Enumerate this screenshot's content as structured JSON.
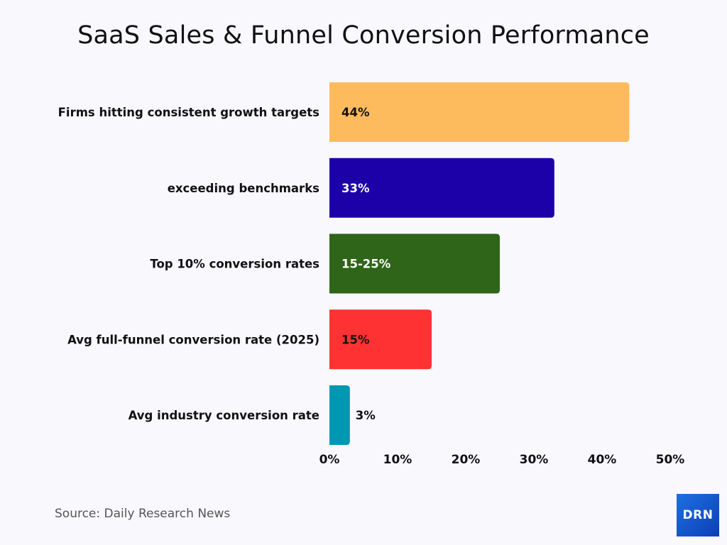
{
  "chart_data": {
    "type": "bar",
    "orientation": "horizontal",
    "title": "SaaS Sales & Funnel Conversion Performance",
    "categories": [
      "Firms hitting consistent growth targets",
      "exceeding benchmarks",
      "Top 10% conversion rates",
      "Avg full-funnel conversion rate (2025)",
      "Avg industry conversion rate"
    ],
    "values": [
      44,
      33,
      25,
      15,
      3
    ],
    "data_labels": [
      "44%",
      "33%",
      "15-25%",
      "15%",
      "3%"
    ],
    "colors": [
      "#fdbb5d",
      "#1c00a8",
      "#2e6519",
      "#fe3232",
      "#0097b2"
    ],
    "label_colors": [
      "#111111",
      "#ffffff",
      "#ffffff",
      "#111111",
      "#111111"
    ],
    "xlim": [
      0,
      50
    ],
    "xticks": [
      0,
      10,
      20,
      30,
      40,
      50
    ],
    "xtick_labels": [
      "0%",
      "10%",
      "20%",
      "30%",
      "40%",
      "50%"
    ],
    "xlabel": "",
    "ylabel": "",
    "grid": false,
    "legend": "none"
  },
  "source": "Source: Daily Research News",
  "logo_text": "DRN"
}
